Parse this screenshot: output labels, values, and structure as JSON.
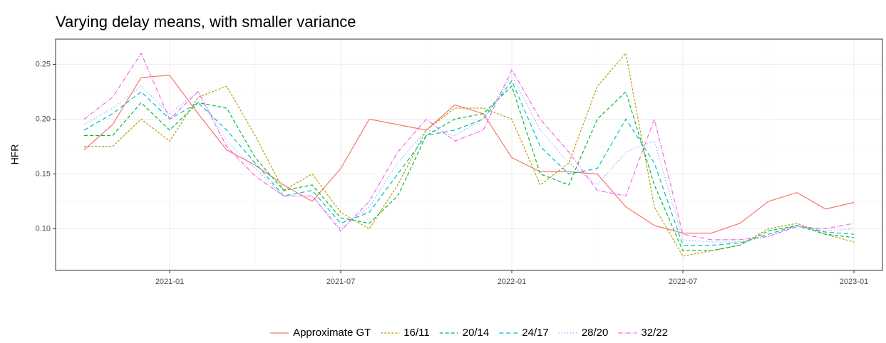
{
  "chart_data": {
    "type": "line",
    "title": "Varying delay means, with smaller variance",
    "y_label": "HFR",
    "x": [
      "2020-10",
      "2020-11",
      "2020-12",
      "2021-01",
      "2021-02",
      "2021-03",
      "2021-04",
      "2021-05",
      "2021-06",
      "2021-07",
      "2021-08",
      "2021-09",
      "2021-10",
      "2021-11",
      "2021-12",
      "2022-01",
      "2022-02",
      "2022-03",
      "2022-04",
      "2022-05",
      "2022-06",
      "2022-07",
      "2022-08",
      "2022-09",
      "2022-10",
      "2022-11",
      "2022-12",
      "2023-01"
    ],
    "xlim": [
      "2020-09",
      "2023-02"
    ],
    "xticks": [
      "2021-01",
      "2021-07",
      "2022-01",
      "2022-07",
      "2023-01"
    ],
    "ylim": [
      0.062,
      0.273
    ],
    "yticks": [
      {
        "value": 0.1,
        "label": "0.10"
      },
      0.15,
      {
        "value": 0.2,
        "label": "0.20"
      },
      0.25
    ],
    "grid": true,
    "legend": "bottom",
    "series": [
      {
        "name": "Approximate GT",
        "color": "#F8766D",
        "values": [
          0.172,
          0.195,
          0.238,
          0.24,
          0.205,
          0.172,
          0.158,
          0.14,
          0.125,
          0.155,
          0.2,
          0.195,
          0.19,
          0.213,
          0.205,
          0.165,
          0.152,
          0.152,
          0.15,
          0.12,
          0.103,
          0.096,
          0.096,
          0.105,
          0.125,
          0.133,
          0.118,
          0.124
        ]
      },
      {
        "name": "16/11",
        "color": "#B79F00",
        "values": [
          0.175,
          0.175,
          0.2,
          0.18,
          0.22,
          0.23,
          0.185,
          0.135,
          0.15,
          0.115,
          0.1,
          0.14,
          0.19,
          0.21,
          0.21,
          0.2,
          0.14,
          0.16,
          0.23,
          0.26,
          0.12,
          0.075,
          0.08,
          0.085,
          0.1,
          0.105,
          0.095,
          0.088
        ]
      },
      {
        "name": "20/14",
        "color": "#00BA38",
        "values": [
          0.185,
          0.185,
          0.215,
          0.19,
          0.215,
          0.21,
          0.165,
          0.135,
          0.14,
          0.11,
          0.105,
          0.13,
          0.185,
          0.2,
          0.205,
          0.23,
          0.15,
          0.14,
          0.2,
          0.225,
          0.14,
          0.08,
          0.08,
          0.085,
          0.098,
          0.103,
          0.095,
          0.092
        ]
      },
      {
        "name": "24/17",
        "color": "#00BFC4",
        "values": [
          0.19,
          0.205,
          0.225,
          0.2,
          0.215,
          0.19,
          0.16,
          0.13,
          0.135,
          0.105,
          0.115,
          0.15,
          0.185,
          0.19,
          0.2,
          0.235,
          0.175,
          0.15,
          0.155,
          0.2,
          0.16,
          0.085,
          0.085,
          0.087,
          0.095,
          0.103,
          0.097,
          0.095
        ]
      },
      {
        "name": "28/20",
        "color": "#619CFF",
        "values": [
          0.195,
          0.21,
          0.23,
          0.205,
          0.225,
          0.18,
          0.155,
          0.13,
          0.13,
          0.1,
          0.12,
          0.16,
          0.19,
          0.185,
          0.2,
          0.24,
          0.19,
          0.16,
          0.14,
          0.17,
          0.18,
          0.09,
          0.088,
          0.088,
          0.093,
          0.103,
          0.098,
          0.1
        ]
      },
      {
        "name": "32/22",
        "color": "#F564E3",
        "values": [
          0.2,
          0.22,
          0.26,
          0.2,
          0.225,
          0.175,
          0.148,
          0.13,
          0.13,
          0.098,
          0.125,
          0.17,
          0.2,
          0.18,
          0.19,
          0.245,
          0.2,
          0.17,
          0.135,
          0.13,
          0.2,
          0.095,
          0.09,
          0.09,
          0.093,
          0.102,
          0.1,
          0.105
        ]
      }
    ]
  }
}
